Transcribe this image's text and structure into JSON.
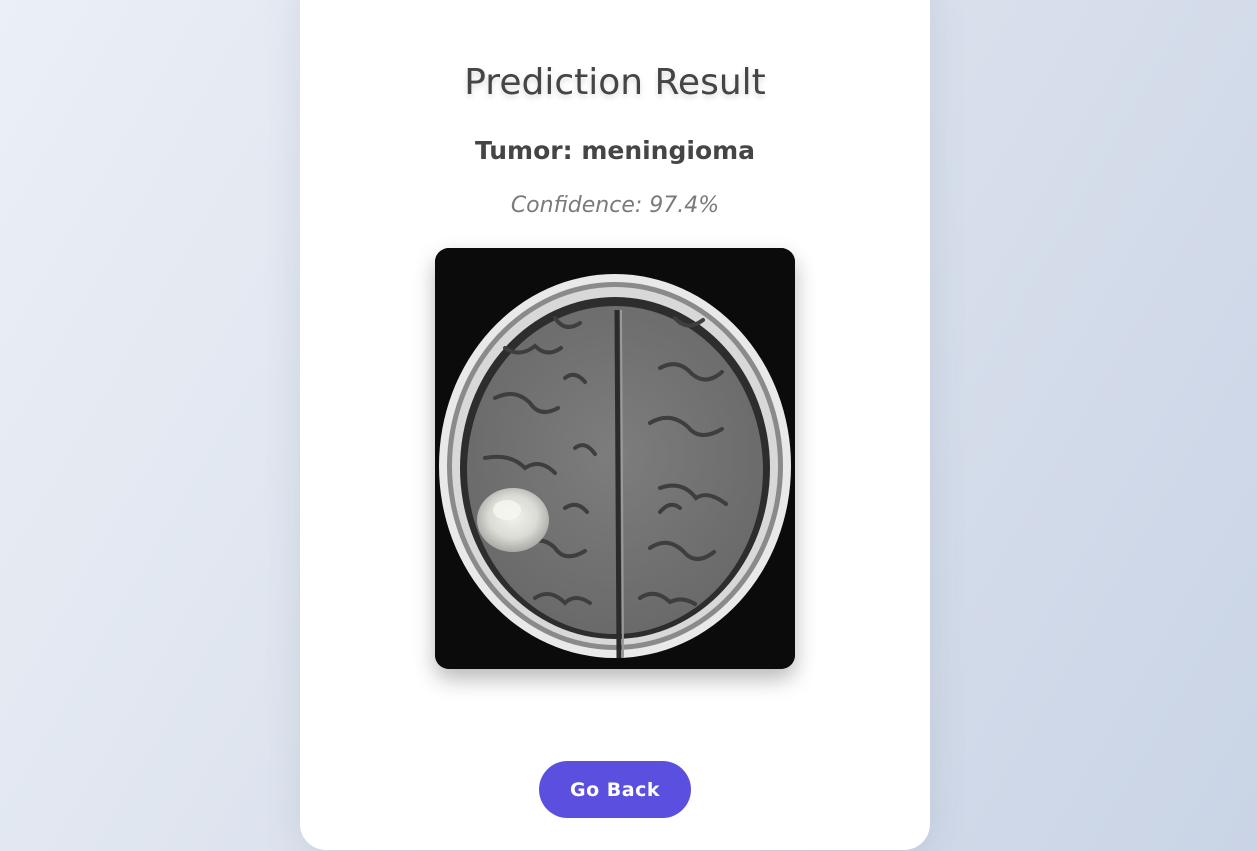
{
  "result": {
    "title": "Prediction Result",
    "tumor_label": "Tumor: meningioma",
    "confidence_label": "Confidence: 97.4%",
    "image_icon": "brain-mri-scan"
  },
  "actions": {
    "go_back_label": "Go Back"
  },
  "colors": {
    "button": "#5b4fe0",
    "card": "#ffffff",
    "heading": "#454545",
    "muted": "#7a7a7a"
  }
}
